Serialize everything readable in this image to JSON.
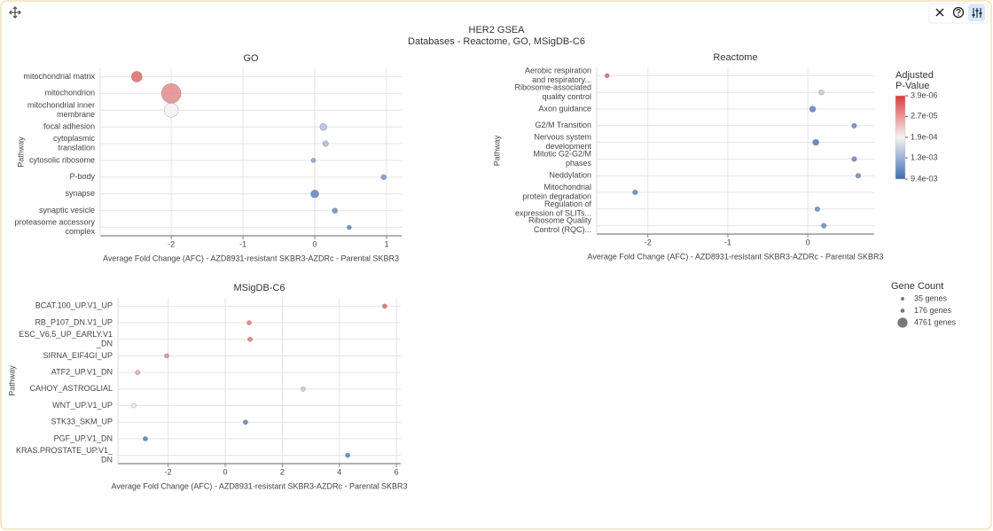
{
  "title": "HER2 GSEA",
  "subtitle": "Databases - Reactome, GO, MSigDB-C6",
  "chart_data": [
    {
      "type": "scatter",
      "title": "GO",
      "x_label": "Average Fold Change (AFC) - AZD8931-resistant SKBR3-AZDRc - Parental SKBR3",
      "y_label": "Pathway",
      "categories": [
        [
          "mitochondrial matrix"
        ],
        [
          "mitochondrion"
        ],
        [
          "mitochondrial inner",
          "membrane"
        ],
        [
          "focal adhesion"
        ],
        [
          "cytoplasmic",
          "translation"
        ],
        [
          "cytosolic ribosome"
        ],
        [
          "P-body"
        ],
        [
          "synapse"
        ],
        [
          "synaptic vesicle"
        ],
        [
          "proteasome accessory",
          "complex"
        ]
      ],
      "values": [
        -2.48,
        -2.0,
        -2.0,
        0.12,
        0.15,
        -0.02,
        0.96,
        0.0,
        0.28,
        0.48
      ],
      "p_values": [
        1e-05,
        2e-05,
        0.0002,
        0.0008,
        0.001,
        0.002,
        0.003,
        0.005,
        0.004,
        0.005
      ],
      "gene_counts": [
        5750,
        26270,
        12180,
        1710,
        760,
        300,
        580,
        2500,
        580,
        240
      ],
      "xlim": [
        -2.99,
        1.21
      ],
      "xticks": [
        -2,
        -1,
        0,
        1
      ],
      "grid": true
    },
    {
      "type": "scatter",
      "title": "Reactome",
      "x_label": "Average Fold Change (AFC) - AZD8931-resistant SKBR3-AZDRc - Parental SKBR3",
      "y_label": "Pathway",
      "categories": [
        [
          "Aerobic respiration",
          "and respiratory..."
        ],
        [
          "Ribosome-associated",
          "quality control"
        ],
        [
          "Axon guidance"
        ],
        [
          "G2/M Transition"
        ],
        [
          "Nervous system",
          "development"
        ],
        [
          "Mitotic G2-G2/M",
          "phases"
        ],
        [
          "Neddylation"
        ],
        [
          "Mitochondrial",
          "protein degradation"
        ],
        [
          "Regulation of",
          "expression of SLITs..."
        ],
        [
          "Ribosome Quality",
          "Control (RQC)..."
        ]
      ],
      "values": [
        -2.51,
        0.17,
        0.06,
        0.58,
        0.1,
        0.58,
        0.63,
        -2.16,
        0.12,
        0.2
      ],
      "p_values": [
        1e-05,
        0.0006,
        0.005,
        0.004,
        0.006,
        0.004,
        0.004,
        0.005,
        0.004,
        0.004
      ],
      "gene_counts": [
        240,
        580,
        1070,
        420,
        1070,
        420,
        420,
        420,
        420,
        420
      ],
      "xlim": [
        -2.64,
        0.83
      ],
      "xticks": [
        -2,
        -1,
        0
      ],
      "grid": true
    },
    {
      "type": "scatter",
      "title": "MSigDB-C6",
      "x_label": "Average Fold Change (AFC) - AZD8931-resistant SKBR3-AZDRc - Parental SKBR3",
      "y_label": "Pathway",
      "categories": [
        [
          "BCAT.100_UP.V1_UP"
        ],
        [
          "RB_P107_DN.V1_UP"
        ],
        [
          "ESC_V6.5_UP_EARLY.V1",
          "_DN"
        ],
        [
          "SIRNA_EIF4GI_UP"
        ],
        [
          "ATF2_UP.V1_DN"
        ],
        [
          "CAHOY_ASTROGLIAL"
        ],
        [
          "WNT_UP.V1_UP"
        ],
        [
          "STK33_SKM_UP"
        ],
        [
          "PGF_UP.V1_DN"
        ],
        [
          "KRAS.PROSTATE_UP.V1_",
          "DN"
        ]
      ],
      "values": [
        5.59,
        0.84,
        0.87,
        -2.05,
        -3.07,
        2.73,
        -3.2,
        0.71,
        -2.8,
        4.29
      ],
      "p_values": [
        1e-05,
        1.5e-05,
        1.5e-05,
        2e-05,
        4e-05,
        6e-05,
        0.00015,
        0.005,
        0.006,
        0.005
      ],
      "gene_counts": [
        300,
        300,
        300,
        300,
        300,
        300,
        300,
        300,
        300,
        300
      ],
      "xlim": [
        -3.76,
        6.15
      ],
      "xticks": [
        -2,
        0,
        2,
        4,
        6
      ],
      "grid": true
    }
  ],
  "color_legend": {
    "title": [
      "Adjusted",
      "P-Value"
    ],
    "clim": [
      3.9e-06,
      0.0094
    ],
    "log": true,
    "colors": [
      "#d63c3c",
      "#f6f3f3",
      "#3f6db2"
    ],
    "ticks": [
      {
        "value": 3.9e-06,
        "label": "3.9e-06"
      },
      {
        "value": 2.7e-05,
        "label": "2.7e-05"
      },
      {
        "value": 0.00019,
        "label": "1.9e-04"
      },
      {
        "value": 0.0013,
        "label": "1.3e-03"
      },
      {
        "value": 0.0094,
        "label": "9.4e-03"
      }
    ]
  },
  "size_legend": {
    "title": "Gene Count",
    "items": [
      {
        "value": 35,
        "label": "35 genes"
      },
      {
        "value": 176,
        "label": "176 genes"
      },
      {
        "value": 4761,
        "label": "4761 genes"
      }
    ]
  }
}
